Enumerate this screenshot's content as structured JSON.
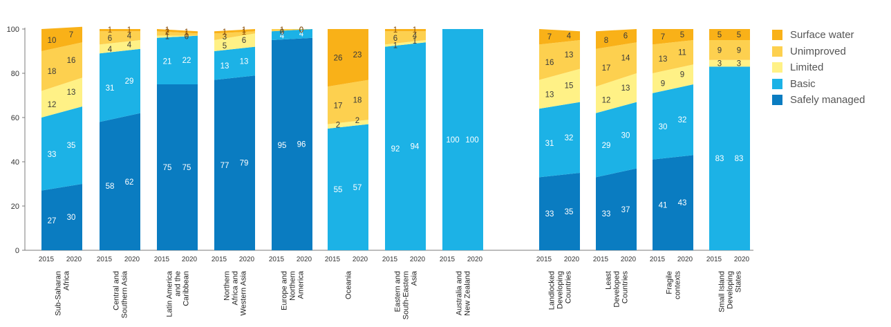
{
  "chart_data": {
    "type": "stacked-area-bar",
    "ylim": [
      0,
      100
    ],
    "yticks": [
      0,
      20,
      40,
      60,
      80,
      100
    ],
    "years": [
      "2015",
      "2020"
    ],
    "series": [
      {
        "name": "Safely managed",
        "color": "#0a7cc1"
      },
      {
        "name": "Basic",
        "color": "#1cb2e6"
      },
      {
        "name": "Limited",
        "color": "#fff186"
      },
      {
        "name": "Unimproved",
        "color": "#fdd04f"
      },
      {
        "name": "Surface water",
        "color": "#f9b118"
      }
    ],
    "groups": [
      {
        "label": "Sub-Saharan\nAfrica",
        "values": [
          [
            27,
            30
          ],
          [
            33,
            35
          ],
          [
            12,
            13
          ],
          [
            18,
            16
          ],
          [
            10,
            7
          ]
        ]
      },
      {
        "label": "Central and\nSouthern Asia",
        "values": [
          [
            58,
            62
          ],
          [
            31,
            29
          ],
          [
            4,
            4
          ],
          [
            6,
            4
          ],
          [
            1,
            1
          ]
        ]
      },
      {
        "label": "Latin America\nand the\nCaribbean",
        "values": [
          [
            75,
            75
          ],
          [
            21,
            22
          ],
          [
            1,
            0
          ],
          [
            2,
            1
          ],
          [
            1,
            1
          ]
        ]
      },
      {
        "label": "Northern\nAfrica and\nWestern Asia",
        "values": [
          [
            77,
            79
          ],
          [
            13,
            13
          ],
          [
            5,
            6
          ],
          [
            3,
            1
          ],
          [
            1,
            1
          ]
        ]
      },
      {
        "label": "Europe and\nNorthern\nAmerica",
        "values": [
          [
            95,
            96
          ],
          [
            4,
            4
          ],
          [
            0,
            0
          ],
          [
            1,
            0
          ],
          [
            0,
            0
          ]
        ]
      },
      {
        "label": "Oceania",
        "values": [
          [
            0,
            0
          ],
          [
            55,
            57
          ],
          [
            2,
            2
          ],
          [
            17,
            18
          ],
          [
            26,
            23
          ]
        ]
      },
      {
        "label": "Eastern and\nSouth-Eastern\nAsia",
        "values": [
          [
            0,
            0
          ],
          [
            92,
            94
          ],
          [
            1,
            1
          ],
          [
            6,
            4
          ],
          [
            1,
            1
          ]
        ]
      },
      {
        "label": "Australia and\nNew Zealand",
        "values": [
          [
            0,
            0
          ],
          [
            100,
            100
          ],
          [
            0,
            0
          ],
          [
            0,
            0
          ],
          [
            0,
            0
          ]
        ]
      },
      {
        "label": "Landlocked\nDeveloping\nCountries",
        "values": [
          [
            33,
            35
          ],
          [
            31,
            32
          ],
          [
            13,
            15
          ],
          [
            16,
            13
          ],
          [
            7,
            4
          ]
        ]
      },
      {
        "label": "Least\nDeveloped\nCountries",
        "values": [
          [
            33,
            37
          ],
          [
            29,
            30
          ],
          [
            12,
            13
          ],
          [
            17,
            14
          ],
          [
            8,
            6
          ]
        ]
      },
      {
        "label": "Fragile\ncontexts",
        "values": [
          [
            41,
            43
          ],
          [
            30,
            32
          ],
          [
            9,
            9
          ],
          [
            13,
            11
          ],
          [
            7,
            5
          ]
        ]
      },
      {
        "label": "Small Island\nDeveloping\nStates",
        "values": [
          [
            0,
            0
          ],
          [
            83,
            83
          ],
          [
            3,
            3
          ],
          [
            9,
            9
          ],
          [
            5,
            5
          ]
        ]
      }
    ]
  }
}
